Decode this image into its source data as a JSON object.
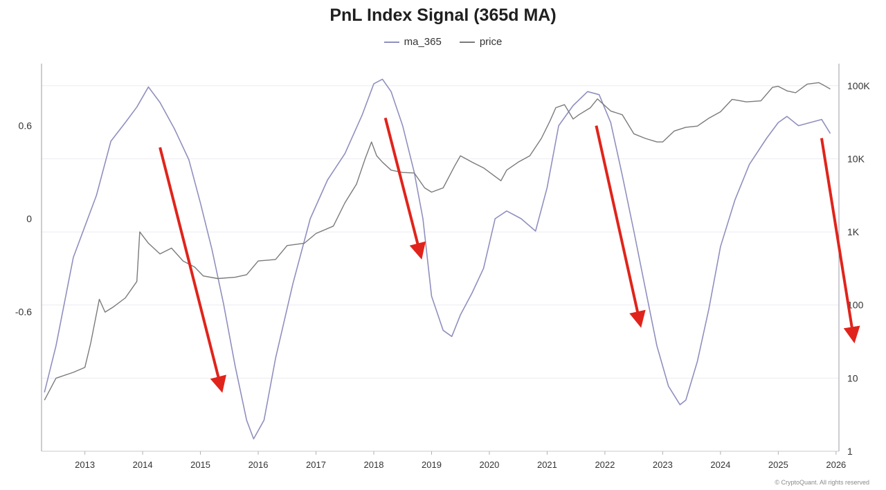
{
  "chart_data": {
    "type": "line",
    "title": "PnL Index Signal (365d MA)",
    "legend": [
      {
        "name": "ma_365",
        "color": "#8f8fbf"
      },
      {
        "name": "price",
        "color": "#7a7a7a"
      }
    ],
    "legend_position": "top-center",
    "x_ticks": [
      "2013",
      "2014",
      "2015",
      "2016",
      "2017",
      "2018",
      "2019",
      "2020",
      "2021",
      "2022",
      "2023",
      "2024",
      "2025",
      "2026"
    ],
    "xlim": [
      2012.25,
      2026.05
    ],
    "left_axis": {
      "ticks": [
        0.6,
        0,
        -0.6
      ],
      "tick_labels": [
        "0.6",
        "0",
        "-0.6"
      ],
      "ylim": [
        -1.5,
        1.0
      ]
    },
    "right_axis": {
      "scale": "log",
      "ticks": [
        1,
        10,
        100,
        1000,
        10000,
        100000
      ],
      "tick_labels": [
        "1",
        "10",
        "100",
        "1K",
        "10K",
        "100K"
      ],
      "ylim": [
        1,
        200000
      ]
    },
    "series": [
      {
        "name": "ma_365",
        "axis": "left",
        "color": "#8f8fbf",
        "x": [
          2012.3,
          2012.5,
          2012.8,
          2013.0,
          2013.2,
          2013.45,
          2013.7,
          2013.9,
          2014.1,
          2014.3,
          2014.55,
          2014.8,
          2015.0,
          2015.2,
          2015.4,
          2015.6,
          2015.8,
          2015.92,
          2016.1,
          2016.3,
          2016.6,
          2016.9,
          2017.2,
          2017.5,
          2017.8,
          2018.0,
          2018.15,
          2018.3,
          2018.5,
          2018.7,
          2018.85,
          2019.0,
          2019.2,
          2019.35,
          2019.5,
          2019.7,
          2019.9,
          2020.1,
          2020.3,
          2020.55,
          2020.8,
          2021.0,
          2021.2,
          2021.45,
          2021.7,
          2021.9,
          2022.1,
          2022.3,
          2022.5,
          2022.7,
          2022.9,
          2023.1,
          2023.3,
          2023.4,
          2023.6,
          2023.8,
          2024.0,
          2024.25,
          2024.5,
          2024.8,
          2025.0,
          2025.15,
          2025.35,
          2025.55,
          2025.75,
          2025.9
        ],
        "y": [
          -1.12,
          -0.82,
          -0.25,
          -0.05,
          0.15,
          0.5,
          0.62,
          0.72,
          0.85,
          0.75,
          0.58,
          0.38,
          0.1,
          -0.2,
          -0.55,
          -0.95,
          -1.3,
          -1.42,
          -1.3,
          -0.9,
          -0.42,
          0.0,
          0.25,
          0.42,
          0.67,
          0.87,
          0.9,
          0.82,
          0.6,
          0.3,
          0.0,
          -0.5,
          -0.72,
          -0.76,
          -0.62,
          -0.48,
          -0.32,
          0.0,
          0.05,
          0.0,
          -0.08,
          0.2,
          0.6,
          0.73,
          0.82,
          0.8,
          0.62,
          0.28,
          -0.08,
          -0.45,
          -0.82,
          -1.08,
          -1.2,
          -1.17,
          -0.92,
          -0.58,
          -0.18,
          0.12,
          0.35,
          0.52,
          0.62,
          0.66,
          0.6,
          0.62,
          0.64,
          0.55
        ]
      },
      {
        "name": "price",
        "axis": "right",
        "color": "#7a7a7a",
        "x": [
          2012.3,
          2012.5,
          2012.8,
          2013.0,
          2013.1,
          2013.25,
          2013.35,
          2013.5,
          2013.7,
          2013.9,
          2013.95,
          2014.1,
          2014.3,
          2014.5,
          2014.7,
          2014.9,
          2015.05,
          2015.3,
          2015.6,
          2015.8,
          2016.0,
          2016.3,
          2016.5,
          2016.8,
          2017.0,
          2017.3,
          2017.5,
          2017.7,
          2017.85,
          2017.96,
          2018.05,
          2018.15,
          2018.3,
          2018.5,
          2018.7,
          2018.88,
          2019.0,
          2019.2,
          2019.4,
          2019.5,
          2019.7,
          2019.9,
          2020.2,
          2020.3,
          2020.5,
          2020.7,
          2020.9,
          2021.05,
          2021.15,
          2021.3,
          2021.45,
          2021.55,
          2021.75,
          2021.87,
          2022.1,
          2022.3,
          2022.5,
          2022.7,
          2022.9,
          2023.0,
          2023.2,
          2023.4,
          2023.6,
          2023.8,
          2024.0,
          2024.2,
          2024.45,
          2024.7,
          2024.9,
          2025.0,
          2025.15,
          2025.3,
          2025.5,
          2025.7,
          2025.8,
          2025.9
        ],
        "y": [
          5,
          10,
          12,
          14,
          30,
          120,
          80,
          95,
          125,
          210,
          1000,
          700,
          500,
          600,
          400,
          330,
          250,
          230,
          240,
          260,
          400,
          420,
          650,
          700,
          950,
          1200,
          2500,
          4500,
          10000,
          17000,
          11000,
          9000,
          7000,
          6500,
          6400,
          4000,
          3500,
          4000,
          8000,
          11000,
          9000,
          7500,
          5000,
          7000,
          9000,
          11000,
          19000,
          33000,
          50000,
          55000,
          35000,
          40000,
          50000,
          66000,
          45000,
          40000,
          22000,
          19000,
          17000,
          17000,
          24000,
          27000,
          28000,
          36000,
          44000,
          65000,
          60000,
          62000,
          95000,
          98000,
          85000,
          80000,
          105000,
          110000,
          100000,
          90000
        ]
      }
    ],
    "annotations": [
      {
        "type": "arrow",
        "color": "#e0241b",
        "from": [
          2014.3,
          0.46
        ],
        "to": [
          2015.35,
          -1.08
        ]
      },
      {
        "type": "arrow",
        "color": "#e0241b",
        "from": [
          2018.2,
          0.65
        ],
        "to": [
          2018.8,
          -0.22
        ]
      },
      {
        "type": "arrow",
        "color": "#e0241b",
        "from": [
          2021.85,
          0.6
        ],
        "to": [
          2022.6,
          -0.66
        ]
      },
      {
        "type": "arrow",
        "color": "#e0241b",
        "from": [
          2025.75,
          0.52
        ],
        "to": [
          2026.3,
          -0.76
        ]
      }
    ],
    "watermark": "© CryptoQuant. All rights reserved"
  }
}
